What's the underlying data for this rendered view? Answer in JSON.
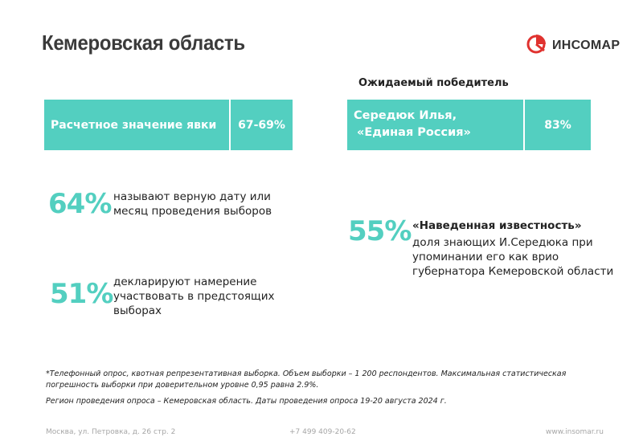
{
  "title": "Кемеровская область",
  "logo": {
    "text": "ИНСОМАР",
    "accent_color": "#e0322f"
  },
  "expected_winner": {
    "heading": "Ожидаемый победитель",
    "name_line1": "Середюк Илья,",
    "name_line2": "«Единая Россия»",
    "value": "83%"
  },
  "turnout": {
    "label": "Расчетное значение явки",
    "value": "67-69%"
  },
  "stats": [
    {
      "value": "64%",
      "line1": "называют верную дату или",
      "line2": "месяц проведения выборов"
    },
    {
      "value": "51%",
      "line1": "декларируют намерение",
      "line2": "участвовать в предстоящих",
      "line3": "выборах"
    }
  ],
  "awareness": {
    "value": "55%",
    "heading": "«Наведенная известность»",
    "line1": "доля знающих И.Середюка при",
    "line2": "упоминании его как врио",
    "line3": "губернатора Кемеровской области"
  },
  "footnote": {
    "line1": "*Телефонный опрос, квотная репрезентативная выборка. Объем выборки – 1 200 респондентов. Максимальная статистическая",
    "line2": "погрешность выборки при доверительном уровне 0,95 равна 2.9%.",
    "line3": "Регион проведения опроса – Кемеровская область. Даты проведения опроса 19-20 августа 2024 г."
  },
  "contacts": {
    "address": "Москва, ул. Петровка, д. 26 стр. 2",
    "phone": "+7 499 409-20-62",
    "website": "www.insomar.ru"
  },
  "colors": {
    "teal": "#53cfc0",
    "red": "#e0322f"
  }
}
